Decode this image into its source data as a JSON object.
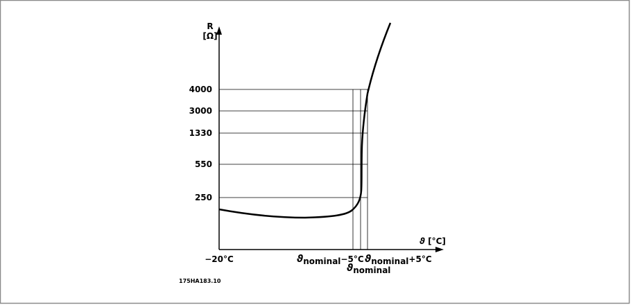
{
  "diagram": {
    "y_axis": {
      "symbol": "R",
      "unit": "[Ω]"
    },
    "x_axis": {
      "symbol": "ϑ",
      "unit": "[°C]"
    },
    "y_labels": [
      "4000",
      "3000",
      "1330",
      "550",
      "250"
    ],
    "x_labels": [
      {
        "text": "−20°C"
      },
      {
        "symbol": "ϑ",
        "subscript": "nominal",
        "suffix": "−5°C"
      },
      {
        "symbol": "ϑ",
        "subscript": "nominal"
      },
      {
        "symbol": "ϑ",
        "subscript": "nominal",
        "suffix": "+5°C"
      }
    ],
    "code": "175HA183.10"
  }
}
